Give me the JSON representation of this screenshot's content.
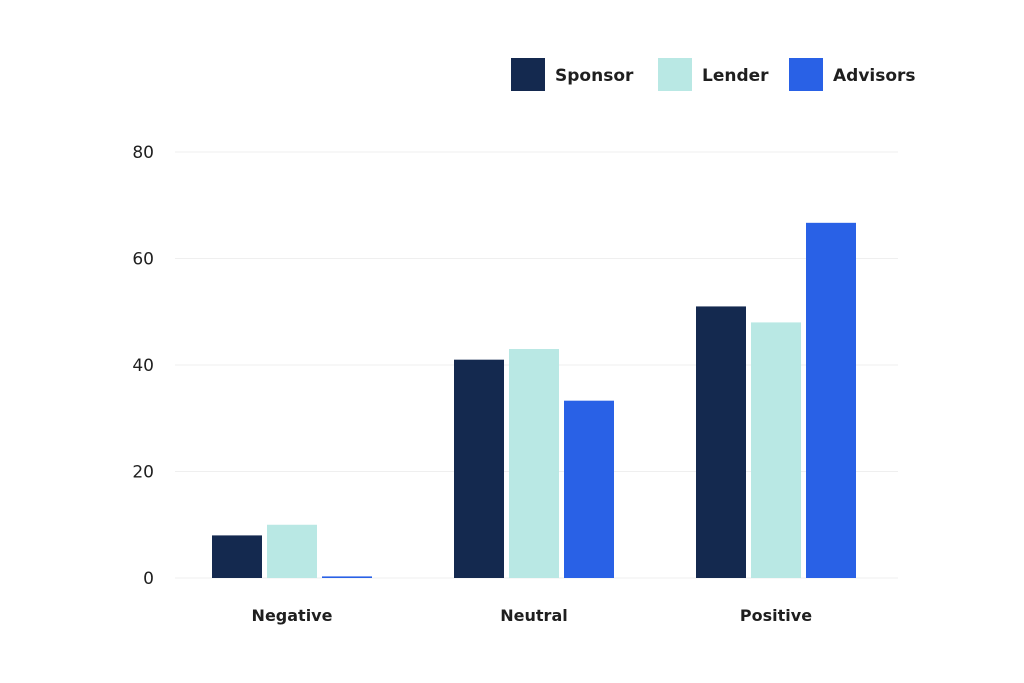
{
  "chart_data": {
    "type": "bar",
    "categories": [
      "Negative",
      "Neutral",
      "Positive"
    ],
    "series": [
      {
        "name": "Sponsor",
        "values": [
          8,
          41,
          51
        ],
        "color": "#14294f"
      },
      {
        "name": "Lender",
        "values": [
          10,
          43,
          48
        ],
        "color": "#b9e8e4"
      },
      {
        "name": "Advisors",
        "values": [
          0.3,
          33.3,
          66.7
        ],
        "color": "#2961e6"
      }
    ],
    "yticks": [
      0,
      20,
      40,
      60,
      80
    ],
    "ylim": [
      0,
      80
    ],
    "grid": true,
    "legend_position": "top-right",
    "gridline_color": "#efefef"
  }
}
